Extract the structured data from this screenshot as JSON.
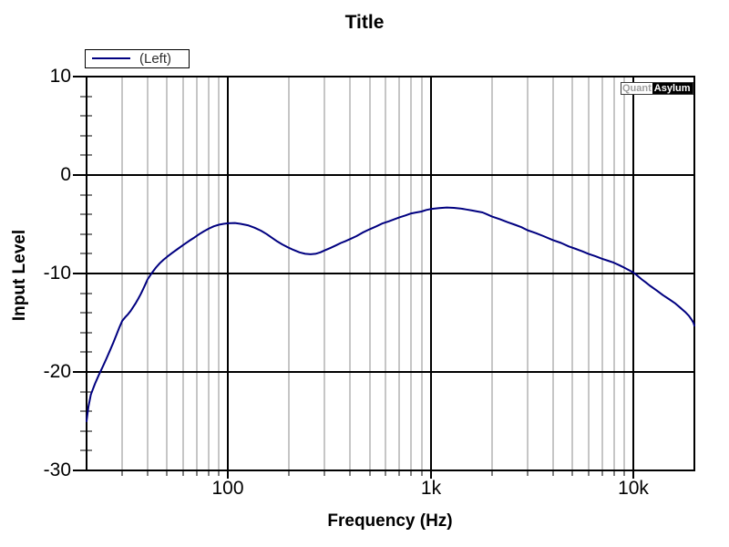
{
  "window": {
    "background": "#ffffff"
  },
  "legend": {
    "label": "(Left)"
  },
  "watermark": {
    "left": "Quant",
    "right": "Asylum"
  },
  "chart_data": {
    "type": "line",
    "title": "Title",
    "xlabel": "Frequency (Hz)",
    "ylabel": "Input Level",
    "x_scale": "log",
    "xlim": [
      20,
      20000
    ],
    "ylim": [
      -30,
      10
    ],
    "grid": true,
    "legend_position": "top-left-outside",
    "x_major_ticks": [
      100,
      1000,
      10000
    ],
    "x_major_tick_labels": [
      "100",
      "1k",
      "10k"
    ],
    "x_minor_ticks": [
      30,
      40,
      50,
      60,
      70,
      80,
      90,
      200,
      300,
      400,
      500,
      600,
      700,
      800,
      900,
      2000,
      3000,
      4000,
      5000,
      6000,
      7000,
      8000,
      9000
    ],
    "y_major_ticks": [
      10,
      0,
      -10,
      -20,
      -30
    ],
    "y_major_tick_labels": [
      "10",
      "0",
      "-10",
      "-20",
      "-30"
    ],
    "y_minor_step": 2,
    "colors": {
      "curve": "#000080",
      "frame": "#000000",
      "major_grid": "#000000",
      "minor_grid": "#8c8c8c"
    },
    "series": [
      {
        "name": "(Left)",
        "color": "#000080",
        "points": [
          [
            20,
            -25.0
          ],
          [
            20.4,
            -23.6
          ],
          [
            21,
            -22.3
          ],
          [
            22,
            -21.2
          ],
          [
            23,
            -20.3
          ],
          [
            24,
            -19.5
          ],
          [
            25,
            -18.7
          ],
          [
            26,
            -17.9
          ],
          [
            27,
            -17.1
          ],
          [
            28,
            -16.3
          ],
          [
            29,
            -15.5
          ],
          [
            30,
            -14.8
          ],
          [
            31,
            -14.45
          ],
          [
            32,
            -14.15
          ],
          [
            33,
            -13.8
          ],
          [
            34,
            -13.4
          ],
          [
            35,
            -13.0
          ],
          [
            36,
            -12.55
          ],
          [
            37,
            -12.1
          ],
          [
            38,
            -11.6
          ],
          [
            39,
            -11.1
          ],
          [
            40,
            -10.6
          ],
          [
            42,
            -9.95
          ],
          [
            44,
            -9.4
          ],
          [
            46,
            -8.95
          ],
          [
            48,
            -8.6
          ],
          [
            50,
            -8.3
          ],
          [
            53,
            -7.9
          ],
          [
            56,
            -7.55
          ],
          [
            60,
            -7.1
          ],
          [
            64,
            -6.7
          ],
          [
            68,
            -6.35
          ],
          [
            72,
            -6.0
          ],
          [
            76,
            -5.7
          ],
          [
            80,
            -5.45
          ],
          [
            85,
            -5.2
          ],
          [
            90,
            -5.05
          ],
          [
            95,
            -4.95
          ],
          [
            100,
            -4.9
          ],
          [
            108,
            -4.87
          ],
          [
            115,
            -4.95
          ],
          [
            125,
            -5.1
          ],
          [
            135,
            -5.35
          ],
          [
            145,
            -5.65
          ],
          [
            155,
            -6.0
          ],
          [
            165,
            -6.4
          ],
          [
            175,
            -6.75
          ],
          [
            185,
            -7.05
          ],
          [
            195,
            -7.3
          ],
          [
            210,
            -7.6
          ],
          [
            225,
            -7.85
          ],
          [
            240,
            -8.0
          ],
          [
            255,
            -8.05
          ],
          [
            270,
            -8.0
          ],
          [
            285,
            -7.85
          ],
          [
            300,
            -7.65
          ],
          [
            320,
            -7.4
          ],
          [
            340,
            -7.15
          ],
          [
            360,
            -6.9
          ],
          [
            380,
            -6.7
          ],
          [
            400,
            -6.5
          ],
          [
            430,
            -6.2
          ],
          [
            460,
            -5.85
          ],
          [
            500,
            -5.5
          ],
          [
            540,
            -5.2
          ],
          [
            580,
            -4.9
          ],
          [
            620,
            -4.7
          ],
          [
            660,
            -4.5
          ],
          [
            700,
            -4.3
          ],
          [
            750,
            -4.1
          ],
          [
            800,
            -3.9
          ],
          [
            850,
            -3.8
          ],
          [
            900,
            -3.7
          ],
          [
            950,
            -3.55
          ],
          [
            1000,
            -3.45
          ],
          [
            1100,
            -3.35
          ],
          [
            1200,
            -3.3
          ],
          [
            1300,
            -3.33
          ],
          [
            1400,
            -3.4
          ],
          [
            1500,
            -3.5
          ],
          [
            1600,
            -3.6
          ],
          [
            1700,
            -3.7
          ],
          [
            1800,
            -3.8
          ],
          [
            1900,
            -4.0
          ],
          [
            2000,
            -4.2
          ],
          [
            2200,
            -4.5
          ],
          [
            2400,
            -4.8
          ],
          [
            2600,
            -5.05
          ],
          [
            2800,
            -5.3
          ],
          [
            3000,
            -5.6
          ],
          [
            3300,
            -5.9
          ],
          [
            3600,
            -6.2
          ],
          [
            4000,
            -6.6
          ],
          [
            4400,
            -6.9
          ],
          [
            4800,
            -7.25
          ],
          [
            5200,
            -7.5
          ],
          [
            5600,
            -7.75
          ],
          [
            6000,
            -8.0
          ],
          [
            6500,
            -8.25
          ],
          [
            7000,
            -8.5
          ],
          [
            7500,
            -8.7
          ],
          [
            8000,
            -8.9
          ],
          [
            8500,
            -9.15
          ],
          [
            9000,
            -9.4
          ],
          [
            9500,
            -9.65
          ],
          [
            10000,
            -9.9
          ],
          [
            10500,
            -10.25
          ],
          [
            11000,
            -10.6
          ],
          [
            11500,
            -10.9
          ],
          [
            12000,
            -11.2
          ],
          [
            13000,
            -11.7
          ],
          [
            14000,
            -12.2
          ],
          [
            15000,
            -12.6
          ],
          [
            16000,
            -13.0
          ],
          [
            17000,
            -13.45
          ],
          [
            18000,
            -13.9
          ],
          [
            18800,
            -14.3
          ],
          [
            19400,
            -14.7
          ],
          [
            19800,
            -15.0
          ],
          [
            20000,
            -15.3
          ]
        ]
      }
    ]
  }
}
